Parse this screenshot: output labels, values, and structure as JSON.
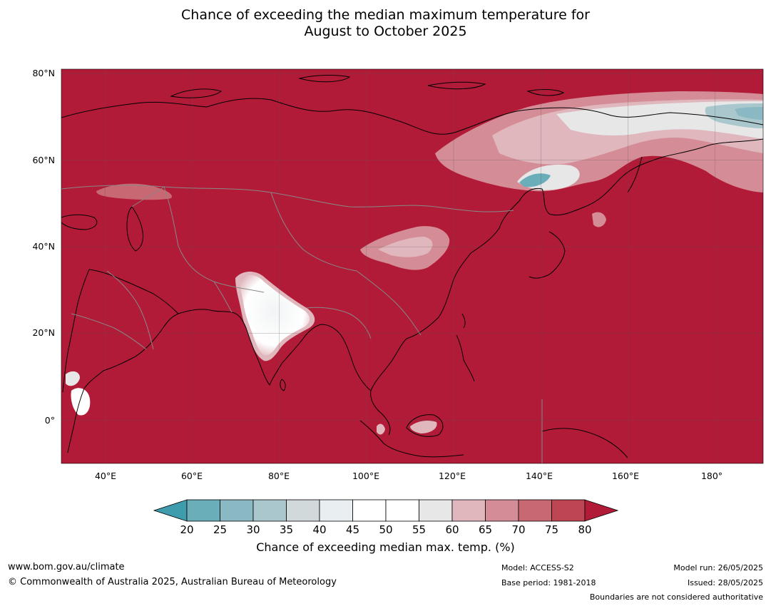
{
  "title": {
    "line1": "Chance of exceeding the median maximum temperature for",
    "line2": "August to October 2025"
  },
  "map": {
    "lat_ticks": [
      "80°N",
      "60°N",
      "40°N",
      "20°N",
      "0°"
    ],
    "lon_ticks": [
      "40°E",
      "60°E",
      "80°E",
      "100°E",
      "120°E",
      "140°E",
      "160°E",
      "180°"
    ],
    "lon_range": [
      30,
      191
    ],
    "lat_range": [
      -10,
      81
    ],
    "background_color": "#b21b38",
    "grid": true
  },
  "colorbar": {
    "labels": [
      "20",
      "25",
      "30",
      "35",
      "40",
      "45",
      "50",
      "55",
      "60",
      "65",
      "70",
      "75",
      "80"
    ],
    "colors": [
      "#3e9cac",
      "#6aaeba",
      "#8ab9c4",
      "#aac7cd",
      "#d2d9db",
      "#e9eff0",
      "#ffffff",
      "#ffffff",
      "#e7e7e7",
      "#e0b7bd",
      "#d48d96",
      "#c86873",
      "#be4552",
      "#b21b38"
    ],
    "title": "Chance of exceeding median max. temp. (%)"
  },
  "footer": {
    "website": "www.bom.gov.au/climate",
    "copyright": "© Commonwealth of Australia 2025, Australian Bureau of Meteorology",
    "model": "Model: ACCESS-S2",
    "base_period": "Base period: 1981-2018",
    "model_run": "Model run: 26/05/2025",
    "issued": "Issued: 28/05/2025",
    "disclaimer": "Boundaries are not considered authoritative"
  }
}
